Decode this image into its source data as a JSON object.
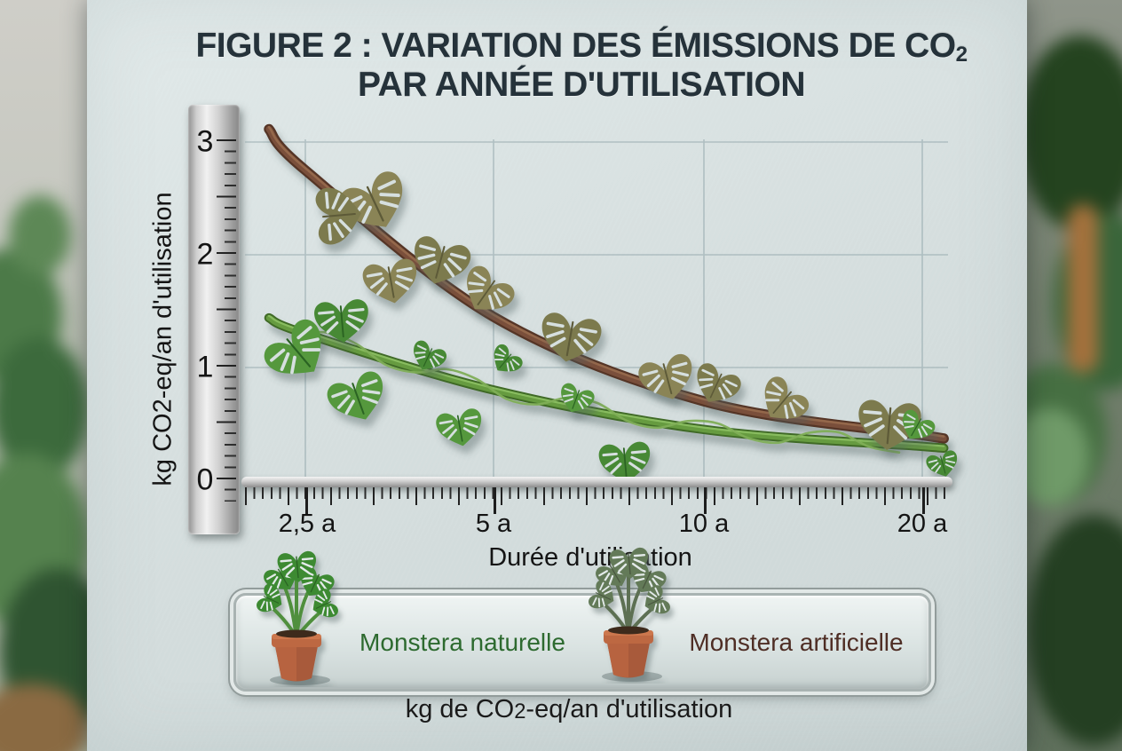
{
  "header": {
    "line1_pre": "FIGURE 2 : VARIATION DES ÉMISSIONS DE CO",
    "line1_sub": "2",
    "line2": "PAR ANNÉE D'UTILISATION"
  },
  "chart_data": {
    "type": "line",
    "title": "Figure 2 : Variation des émissions de CO2 par année d'utilisation",
    "categories": [
      "2,5 a",
      "5 a",
      "10 a",
      "20 a"
    ],
    "categories_years": [
      2.5,
      5,
      10,
      20
    ],
    "series": [
      {
        "name": "Monstera naturelle",
        "color": "#5d8f3a",
        "values": [
          1.3,
          0.8,
          0.45,
          0.3
        ]
      },
      {
        "name": "Monstera artificielle",
        "color": "#6b4232",
        "values": [
          2.75,
          1.45,
          0.7,
          0.4
        ]
      }
    ],
    "xlabel": "Durée d'utilisation",
    "ylabel": "kg CO2-eq/an d'utilisation",
    "ylim": [
      0,
      3
    ],
    "yticks": [
      0,
      1,
      2,
      3
    ],
    "grid": true,
    "legend_position": "bottom"
  },
  "legend": {
    "items": [
      {
        "label": "Monstera naturelle",
        "color": "#2d6a2f",
        "icon": "potted-monstera-natural"
      },
      {
        "label": "Monstera artificielle",
        "color": "#4e2d24",
        "icon": "potted-monstera-artificial"
      }
    ]
  },
  "footer": {
    "pre": "kg de CO",
    "sub": "2",
    "post": "-eq/an d'utilisation"
  },
  "colors": {
    "panel": "#d6dfdf",
    "grid": "#8ea3a8",
    "title_text": "#25323a",
    "axis_text": "#141414",
    "natural_stem": "#669b3f",
    "artificial_stem": "#6b4232",
    "terracotta_pot": "#b0603e"
  }
}
